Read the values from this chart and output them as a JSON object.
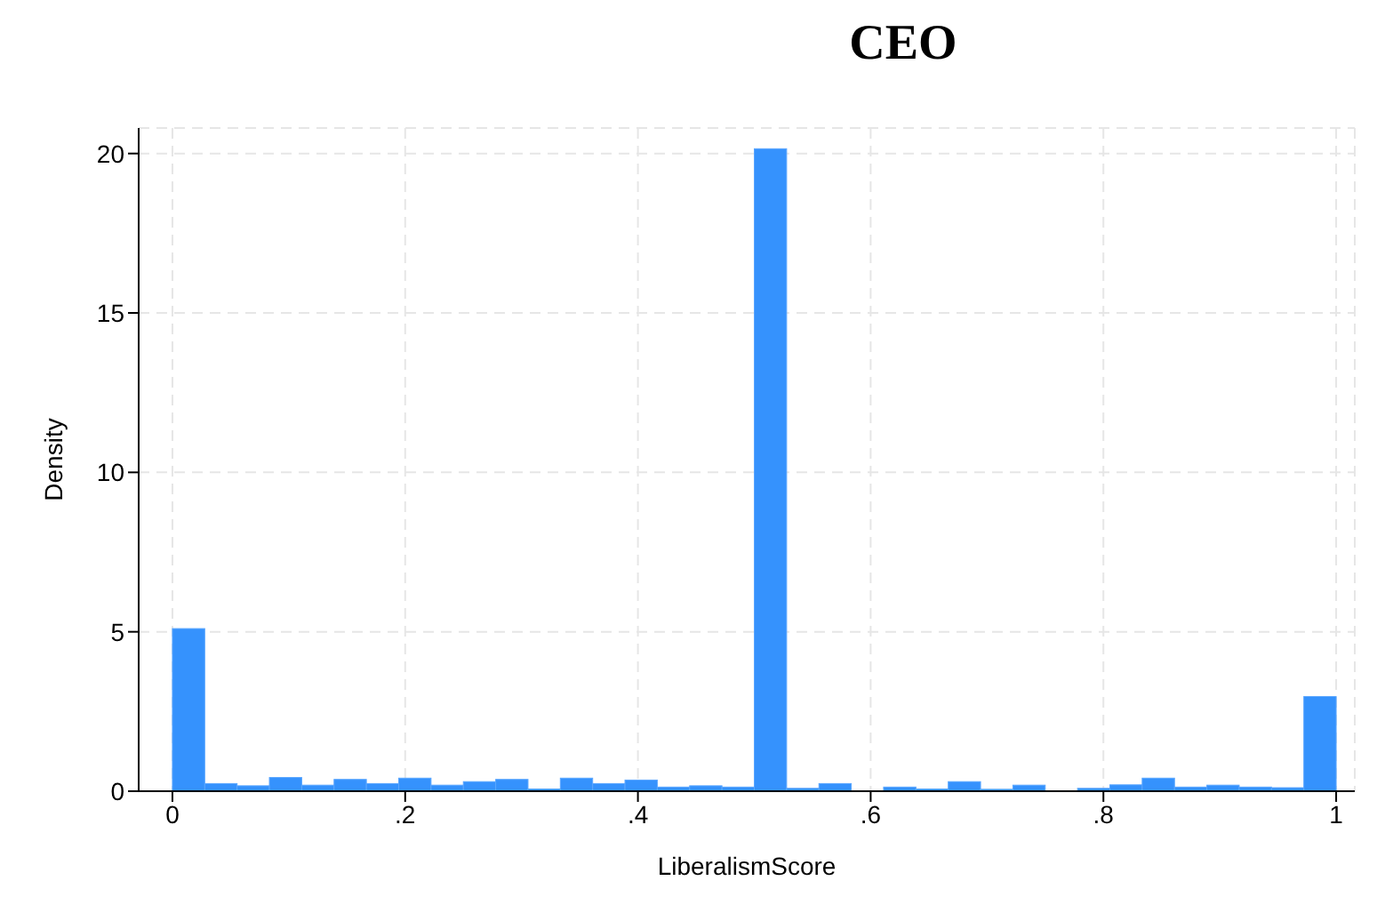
{
  "chart_data": {
    "type": "histogram",
    "title": "CEO",
    "xlabel": "LiberalismScore",
    "ylabel": "Density",
    "color": "#3592fd",
    "bins": [
      0,
      0.02778,
      0.05556,
      0.08333,
      0.11111,
      0.13889,
      0.16667,
      0.19444,
      0.22222,
      0.25,
      0.27778,
      0.30556,
      0.33333,
      0.36111,
      0.38889,
      0.41667,
      0.44444,
      0.47222,
      0.5,
      0.52778,
      0.55556,
      0.58333,
      0.61111,
      0.63889,
      0.66667,
      0.69444,
      0.72222,
      0.75,
      0.77778,
      0.80556,
      0.83333,
      0.86111,
      0.88889,
      0.91667,
      0.94444,
      0.97222,
      1
    ],
    "values": [
      5.1,
      0.24,
      0.17,
      0.43,
      0.19,
      0.37,
      0.24,
      0.41,
      0.19,
      0.3,
      0.37,
      0.07,
      0.41,
      0.24,
      0.35,
      0.13,
      0.17,
      0.13,
      20.15,
      0.09,
      0.24,
      0,
      0.13,
      0.07,
      0.3,
      0.06,
      0.19,
      0,
      0.09,
      0.2,
      0.41,
      0.13,
      0.19,
      0.13,
      0.11,
      2.97
    ],
    "xlim": [
      -0.029,
      1.016
    ],
    "xticks": [
      {
        "value": 0,
        "label": "0"
      },
      {
        "value": 0.2,
        "label": ".2"
      },
      {
        "value": 0.4,
        "label": ".4"
      },
      {
        "value": 0.6,
        "label": ".6"
      },
      {
        "value": 0.8,
        "label": ".8"
      },
      {
        "value": 1,
        "label": "1"
      }
    ],
    "ylim": [
      0,
      20.8
    ],
    "yticks": [
      0,
      5,
      10,
      15,
      20
    ],
    "grid": true
  }
}
